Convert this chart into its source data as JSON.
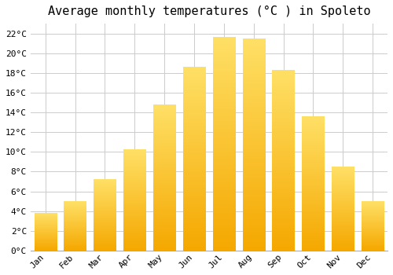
{
  "title": "Average monthly temperatures (°C ) in Spoleto",
  "months": [
    "Jan",
    "Feb",
    "Mar",
    "Apr",
    "May",
    "Jun",
    "Jul",
    "Aug",
    "Sep",
    "Oct",
    "Nov",
    "Dec"
  ],
  "values": [
    3.8,
    5.0,
    7.2,
    10.2,
    14.8,
    18.6,
    21.6,
    21.5,
    18.3,
    13.6,
    8.5,
    5.0
  ],
  "bar_color_bottom": "#F5A800",
  "bar_color_top": "#FFD966",
  "background_color": "#FFFFFF",
  "plot_bg_color": "#FFFFFF",
  "grid_color": "#CCCCCC",
  "title_fontsize": 11,
  "tick_fontsize": 8,
  "ylim": [
    0,
    23
  ],
  "ytick_step": 2,
  "figsize": [
    5.0,
    3.5
  ],
  "dpi": 100
}
